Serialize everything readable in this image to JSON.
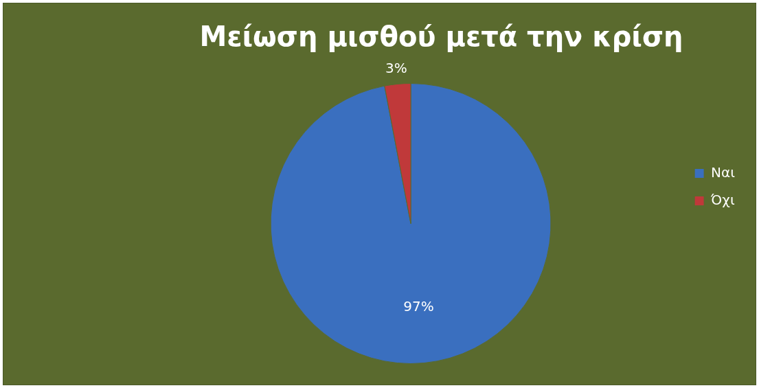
{
  "chart_data": {
    "type": "pie",
    "title": "Μείωση μισθού μετά την κρίση",
    "categories": [
      "Ναι",
      "Όχι"
    ],
    "values": [
      97,
      3
    ],
    "colors": [
      "#3a6fbf",
      "#c0393a"
    ],
    "value_labels": [
      "97%",
      "3%"
    ],
    "legend": "right"
  }
}
